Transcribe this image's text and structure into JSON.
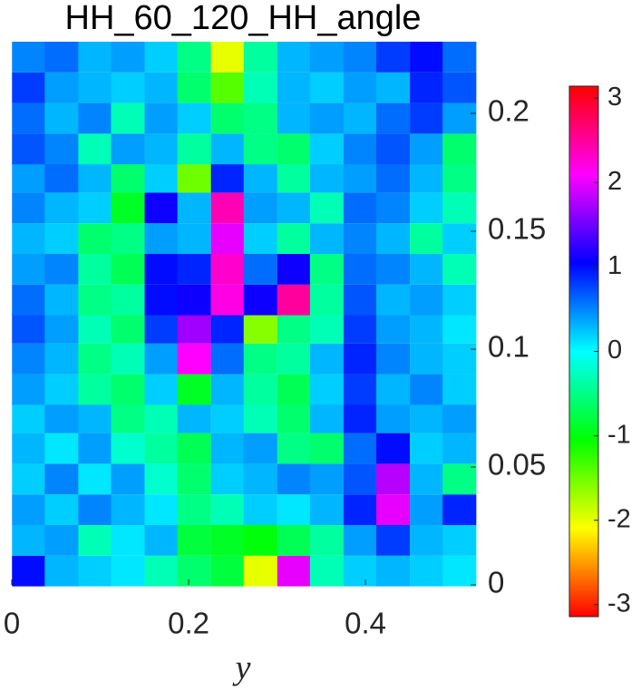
{
  "chart_data": {
    "type": "heatmap",
    "title": "HH_60_120_HH_angle",
    "xlabel": "y",
    "colormap": "hsv",
    "x": [
      0.019,
      0.056,
      0.094,
      0.131,
      0.169,
      0.206,
      0.244,
      0.281,
      0.319,
      0.356,
      0.394,
      0.431,
      0.469,
      0.506
    ],
    "y": [
      0.006,
      0.019,
      0.032,
      0.045,
      0.058,
      0.071,
      0.083,
      0.096,
      0.109,
      0.121,
      0.134,
      0.147,
      0.16,
      0.173,
      0.185,
      0.198,
      0.211,
      0.224
    ],
    "z": [
      [
        1.0,
        0.3,
        0.2,
        0.1,
        -0.3,
        -0.6,
        -0.8,
        -2.0,
        2.0,
        -0.3,
        0.2,
        0.3,
        0.2,
        0.1
      ],
      [
        0.3,
        0.4,
        -0.3,
        0.1,
        0.3,
        -0.8,
        -0.9,
        -1.0,
        -0.7,
        -0.4,
        0.4,
        0.8,
        0.3,
        0.2
      ],
      [
        0.4,
        0.2,
        0.5,
        0.3,
        0.1,
        -0.5,
        -0.3,
        0.2,
        0.1,
        0.3,
        0.9,
        2.0,
        0.4,
        0.9
      ],
      [
        0.2,
        0.5,
        0.1,
        0.4,
        -0.2,
        -0.6,
        0.2,
        0.3,
        0.5,
        0.4,
        0.7,
        1.8,
        0.3,
        -0.5
      ],
      [
        0.3,
        0.1,
        0.4,
        -0.2,
        -0.4,
        -0.7,
        0.3,
        0.4,
        -0.5,
        -0.6,
        0.6,
        1.0,
        0.2,
        0.3
      ],
      [
        0.2,
        0.4,
        0.3,
        -0.5,
        -0.3,
        0.3,
        0.2,
        -0.3,
        -0.6,
        0.3,
        0.9,
        0.4,
        0.3,
        0.4
      ],
      [
        0.4,
        0.2,
        -0.4,
        -0.6,
        0.2,
        -0.9,
        0.3,
        -0.4,
        -0.7,
        0.2,
        0.8,
        0.3,
        0.5,
        0.2
      ],
      [
        0.5,
        0.3,
        -0.5,
        -0.3,
        0.4,
        2.1,
        0.6,
        -0.5,
        -0.4,
        0.3,
        0.9,
        0.5,
        0.3,
        0.2
      ],
      [
        0.7,
        0.4,
        -0.3,
        -0.6,
        0.8,
        1.7,
        0.9,
        -1.6,
        -0.5,
        -0.3,
        0.8,
        0.4,
        0.3,
        0.1
      ],
      [
        0.6,
        0.3,
        -0.5,
        -0.4,
        1.0,
        1.1,
        2.2,
        1.1,
        2.5,
        -0.4,
        0.7,
        0.3,
        0.4,
        0.2
      ],
      [
        0.4,
        0.5,
        -0.4,
        -0.7,
        1.0,
        0.9,
        2.3,
        0.6,
        1.1,
        -0.5,
        0.6,
        0.5,
        0.3,
        -0.3
      ],
      [
        0.3,
        0.2,
        -0.6,
        -0.5,
        0.4,
        0.3,
        2.0,
        0.2,
        -0.4,
        0.3,
        0.5,
        0.3,
        -0.4,
        0.2
      ],
      [
        0.5,
        0.3,
        0.2,
        -0.9,
        1.1,
        0.3,
        2.4,
        0.4,
        0.3,
        -0.3,
        0.6,
        0.5,
        0.2,
        -0.3
      ],
      [
        0.4,
        0.6,
        0.3,
        -0.6,
        0.2,
        -1.5,
        0.9,
        0.3,
        -0.4,
        0.3,
        0.4,
        0.6,
        0.3,
        -0.5
      ],
      [
        0.7,
        0.5,
        -0.3,
        0.4,
        0.3,
        -0.4,
        0.3,
        -0.5,
        -0.6,
        0.2,
        0.5,
        0.7,
        0.4,
        -0.6
      ],
      [
        0.6,
        0.3,
        0.5,
        -0.3,
        0.4,
        0.2,
        -0.6,
        -0.5,
        0.3,
        0.4,
        0.3,
        0.6,
        0.8,
        0.4
      ],
      [
        0.8,
        0.4,
        0.3,
        0.2,
        0.3,
        -0.6,
        -1.4,
        -0.3,
        0.3,
        0.2,
        0.4,
        0.3,
        0.9,
        0.7
      ],
      [
        0.5,
        0.6,
        0.3,
        0.4,
        0.2,
        -0.5,
        -2.0,
        -0.4,
        0.3,
        0.4,
        0.5,
        0.8,
        1.0,
        0.6
      ]
    ],
    "xlim": [
      0,
      0.525
    ],
    "ylim": [
      0,
      0.23
    ],
    "xticks": [
      0,
      0.2,
      0.4
    ],
    "yticks": [
      0,
      0.05,
      0.1,
      0.15,
      0.2
    ],
    "clim": [
      -3.1416,
      3.1416
    ],
    "colorbar_ticks": [
      -3,
      -2,
      -1,
      0,
      1,
      2,
      3
    ]
  }
}
